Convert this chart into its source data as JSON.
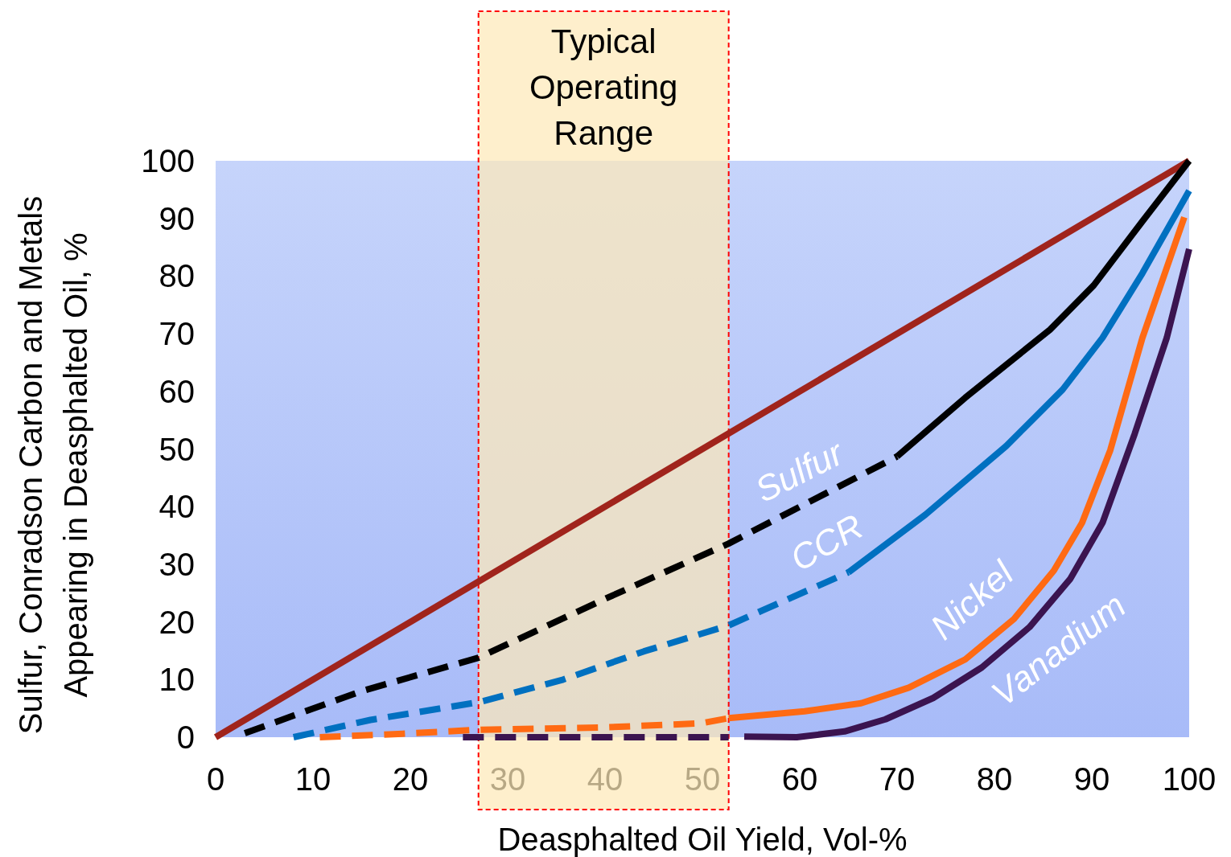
{
  "chart_data": {
    "type": "line",
    "xlabel": "Deasphalted Oil Yield, Vol-%",
    "ylabel": "Sulfur, Conradson Carbon and Metals\nAppearing in Deasphalted Oil, %",
    "xlim": [
      0,
      100
    ],
    "ylim": [
      0,
      100
    ],
    "xticks": [
      0,
      10,
      20,
      30,
      40,
      50,
      60,
      70,
      80,
      90,
      100
    ],
    "yticks": [
      0,
      10,
      20,
      30,
      40,
      50,
      60,
      70,
      80,
      90,
      100
    ],
    "grid": false,
    "legend": false,
    "marker": "none",
    "bands": [
      {
        "axis": "x",
        "from": 27,
        "to": 52.7,
        "label": "Typical Operating Range",
        "color": "#fde9b9"
      }
    ],
    "series": [
      {
        "color": "#a0241c",
        "line_style": "solid",
        "x": [
          0,
          100
        ],
        "values": [
          0,
          100
        ]
      },
      {
        "name": "Sulfur",
        "color": "#000000",
        "line_style": "dashed",
        "x": [
          3,
          15,
          27,
          40,
          52.7,
          70
        ],
        "values": [
          0.7,
          8,
          13.8,
          24,
          33.6,
          48.7
        ]
      },
      {
        "color": "#000000",
        "line_style": "solid",
        "x": [
          70,
          77,
          85.7,
          90.2,
          95.2,
          100
        ],
        "values": [
          48.7,
          58.9,
          70.7,
          78.4,
          89.5,
          100
        ]
      },
      {
        "color": "#0070c0",
        "line_style": "dashed",
        "x": [
          8,
          15.9,
          27.1,
          35.7,
          44,
          52.7,
          65
        ],
        "values": [
          0,
          3,
          6.1,
          10,
          14.9,
          19.4,
          28.6
        ]
      },
      {
        "name": "CCR",
        "color": "#0070c0",
        "line_style": "solid",
        "x": [
          65,
          72.9,
          81.2,
          87,
          91.1,
          95.2,
          100
        ],
        "values": [
          28.6,
          38.6,
          50.5,
          60.3,
          69.3,
          80.5,
          94.8
        ]
      },
      {
        "color": "#ff6a13",
        "line_style": "dashed",
        "x": [
          10.7,
          19.2,
          27.1,
          39.8,
          49.8,
          52.7
        ],
        "values": [
          0,
          0.6,
          1.3,
          1.7,
          2.4,
          3.3
        ]
      },
      {
        "name": "Nickel",
        "color": "#ff6a13",
        "line_style": "solid",
        "x": [
          52.7,
          60.5,
          66.3,
          71.2,
          77,
          82,
          86.1,
          89,
          91.9,
          95.2,
          99.5
        ],
        "values": [
          3.3,
          4.5,
          5.9,
          8.6,
          13.5,
          20.5,
          28.9,
          37.2,
          49.8,
          69.3,
          90.2
        ]
      },
      {
        "color": "#3b1450",
        "line_style": "dashed",
        "x": [
          25.4,
          27,
          40,
          52.7
        ],
        "values": [
          0,
          0,
          0,
          0
        ]
      },
      {
        "name": "Vanadium",
        "color": "#3b1450",
        "line_style": "solid",
        "x": [
          54.3,
          59.7,
          64.6,
          68.8,
          73.7,
          78.7,
          83.6,
          87.8,
          91.1,
          94.4,
          97.7,
          100
        ],
        "values": [
          0.1,
          0,
          1,
          3.1,
          6.8,
          12.1,
          19.1,
          27.5,
          37.2,
          52.6,
          69.3,
          84.7
        ]
      }
    ]
  }
}
